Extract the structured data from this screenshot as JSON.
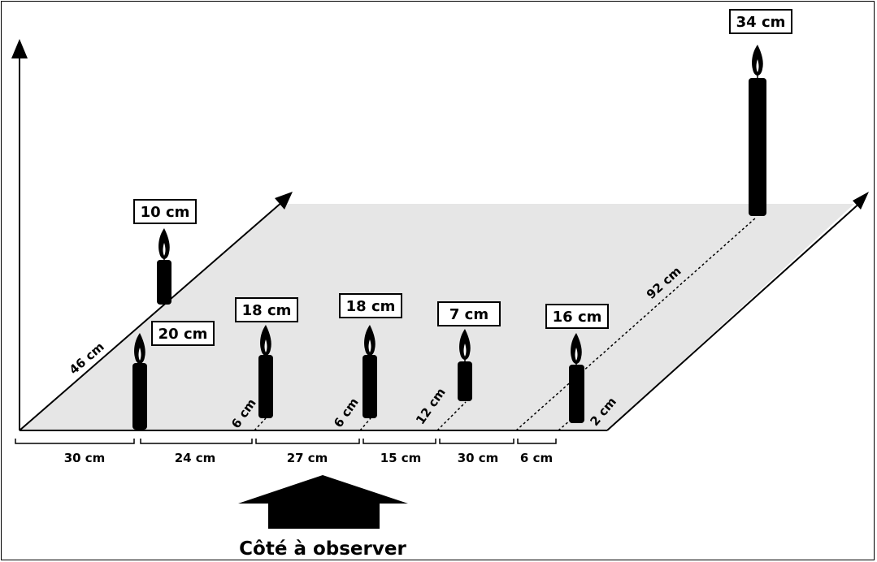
{
  "heights": {
    "c1": "20 cm",
    "c2": "10 cm",
    "c3": "18 cm",
    "c4": "18 cm",
    "c5": "7 cm",
    "c6": "16 cm",
    "c7": "34 cm"
  },
  "bottom": [
    "30 cm",
    "24 cm",
    "27 cm",
    "15 cm",
    "30 cm",
    "6 cm"
  ],
  "depth": {
    "left_edge": "46 cm",
    "c3": "6 cm",
    "c4": "6 cm",
    "c5": "12 cm",
    "c6": "2 cm",
    "c7": "92 cm"
  },
  "caption": "Côté à observer"
}
